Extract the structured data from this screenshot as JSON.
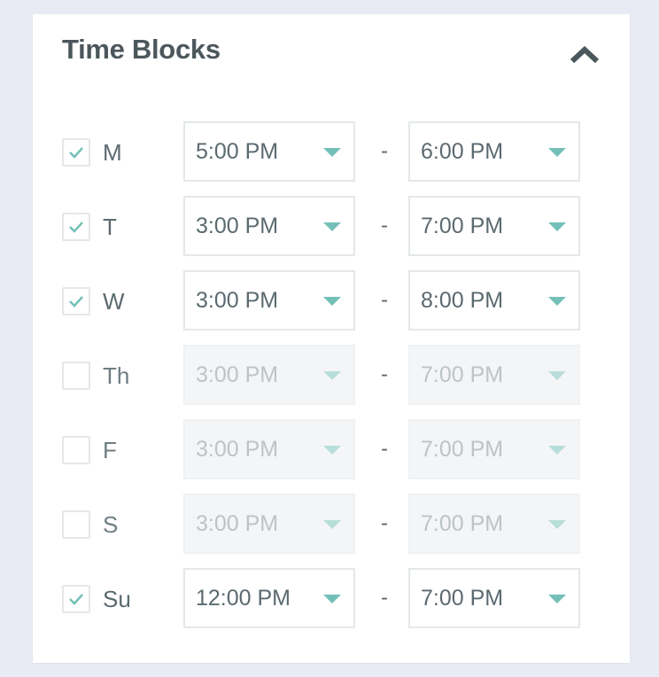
{
  "title": "Time Blocks",
  "collapse_icon": "chevron-up-icon",
  "accent": "#74c0b8",
  "separator": "-",
  "rows": [
    {
      "day": "M",
      "checked": true,
      "start": "5:00 PM",
      "end": "6:00 PM"
    },
    {
      "day": "T",
      "checked": true,
      "start": "3:00 PM",
      "end": "7:00 PM"
    },
    {
      "day": "W",
      "checked": true,
      "start": "3:00 PM",
      "end": "8:00 PM"
    },
    {
      "day": "Th",
      "checked": false,
      "start": "3:00 PM",
      "end": "7:00 PM"
    },
    {
      "day": "F",
      "checked": false,
      "start": "3:00 PM",
      "end": "7:00 PM"
    },
    {
      "day": "S",
      "checked": false,
      "start": "3:00 PM",
      "end": "7:00 PM"
    },
    {
      "day": "Su",
      "checked": true,
      "start": "12:00 PM",
      "end": "7:00 PM"
    }
  ]
}
